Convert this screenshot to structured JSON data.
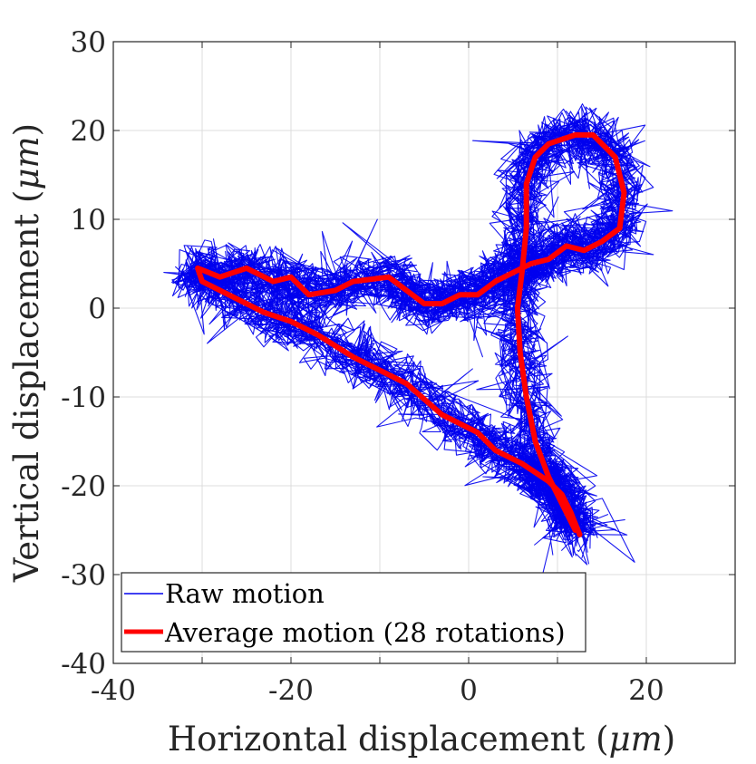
{
  "chart_data": {
    "type": "line",
    "xlabel": "Horizontal displacement",
    "xlabel_unit": "μm",
    "ylabel": "Vertical displacement",
    "ylabel_unit": "μm",
    "xlim": [
      -40,
      30
    ],
    "ylim": [
      -40,
      30
    ],
    "xticks": [
      -40,
      -20,
      0,
      20
    ],
    "yticks": [
      -40,
      -30,
      -20,
      -10,
      0,
      10,
      20,
      30
    ],
    "grid": true,
    "legend_position": "bottom-left",
    "colors": {
      "raw": "#0000ee",
      "average": "#ff0000"
    },
    "series": [
      {
        "name": "Raw motion",
        "style": "thin",
        "note": "28 noisy overlapping rotations scattered around the average path (spread about ±3 μm)"
      },
      {
        "name": "Average motion",
        "style": "thick",
        "points": [
          [
            12.5,
            -25.5
          ],
          [
            11.5,
            -23
          ],
          [
            10.5,
            -21
          ],
          [
            9,
            -19.5
          ],
          [
            7.5,
            -18.5
          ],
          [
            6,
            -17.5
          ],
          [
            3,
            -16
          ],
          [
            1,
            -14
          ],
          [
            -3,
            -12
          ],
          [
            -7,
            -8.5
          ],
          [
            -10,
            -7
          ],
          [
            -13,
            -5.5
          ],
          [
            -17,
            -3
          ],
          [
            -20,
            -1.5
          ],
          [
            -23,
            -0.5
          ],
          [
            -27,
            1.5
          ],
          [
            -30,
            3
          ],
          [
            -30.5,
            4.5
          ],
          [
            -28,
            3.5
          ],
          [
            -25,
            4.5
          ],
          [
            -22,
            3
          ],
          [
            -20,
            3.5
          ],
          [
            -18,
            1.5
          ],
          [
            -15,
            2
          ],
          [
            -13,
            3
          ],
          [
            -9,
            3.5
          ],
          [
            -7,
            2
          ],
          [
            -5,
            0.5
          ],
          [
            -3,
            0.5
          ],
          [
            -1,
            1.5
          ],
          [
            1,
            1.5
          ],
          [
            3,
            3
          ],
          [
            5,
            4
          ],
          [
            7,
            5
          ],
          [
            9,
            5.5
          ],
          [
            11,
            7
          ],
          [
            13,
            6.5
          ],
          [
            15,
            7.5
          ],
          [
            17,
            9
          ],
          [
            17.5,
            13
          ],
          [
            16.5,
            17
          ],
          [
            14,
            19.5
          ],
          [
            12,
            19.5
          ],
          [
            9,
            18.5
          ],
          [
            7.5,
            17
          ],
          [
            6.5,
            14
          ],
          [
            6.5,
            9
          ],
          [
            6,
            4
          ],
          [
            5.5,
            0
          ],
          [
            5.8,
            -5
          ],
          [
            6.5,
            -10
          ],
          [
            7.5,
            -15
          ],
          [
            9,
            -19
          ],
          [
            10.5,
            -22
          ],
          [
            12,
            -25
          ]
        ]
      }
    ],
    "legend": {
      "raw_label": "Raw motion",
      "average_label": "Average motion",
      "average_note": "(28 rotations)"
    }
  }
}
